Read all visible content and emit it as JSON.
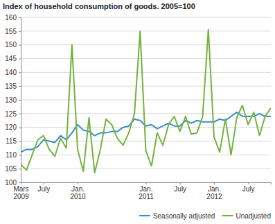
{
  "chart_data": {
    "type": "line",
    "title": "Index of household consumption of goods. 2005=100",
    "categories": [
      "Mars 2009",
      null,
      null,
      null,
      "July",
      null,
      null,
      null,
      null,
      null,
      "Jan. 2010",
      null,
      null,
      null,
      null,
      null,
      null,
      null,
      null,
      null,
      null,
      null,
      "Jan. 2011",
      null,
      null,
      null,
      null,
      null,
      "July",
      null,
      null,
      null,
      null,
      null,
      "Jan. 2012",
      null,
      null,
      null,
      null,
      null,
      "July",
      null,
      null,
      null,
      null
    ],
    "series": [
      {
        "name": "Seasonally adjusted",
        "color": "#3a8dca",
        "values": [
          111,
          112,
          112,
          113,
          115.5,
          115,
          114.5,
          117,
          115.5,
          118,
          121,
          119,
          118.5,
          117,
          118,
          118,
          118.5,
          118.5,
          120,
          120.5,
          123,
          122.5,
          120.5,
          121,
          119.5,
          120.5,
          121.5,
          120.5,
          120.5,
          122.5,
          121.5,
          122.5,
          122,
          122,
          122,
          123,
          122.5,
          124,
          125.5,
          124,
          124,
          124,
          125,
          124,
          124
        ]
      },
      {
        "name": "Unadjusted",
        "color": "#74b23d",
        "values": [
          106.5,
          104.5,
          110,
          115.5,
          117,
          112,
          109.5,
          116,
          112.5,
          150,
          112,
          104,
          123.5,
          103.5,
          112,
          123,
          121,
          116,
          113.5,
          118,
          125,
          155,
          111.5,
          106,
          118,
          113.5,
          121,
          124,
          118.5,
          124,
          117.5,
          118,
          124,
          155.5,
          116.5,
          111,
          123,
          110,
          123.5,
          128,
          121,
          125.5,
          117,
          124,
          127
        ]
      }
    ],
    "ylim": [
      100,
      160
    ],
    "yticks": [
      100,
      105,
      110,
      115,
      120,
      125,
      130,
      135,
      140,
      145,
      150,
      155,
      160
    ],
    "grid": true,
    "legend": "bottom"
  }
}
